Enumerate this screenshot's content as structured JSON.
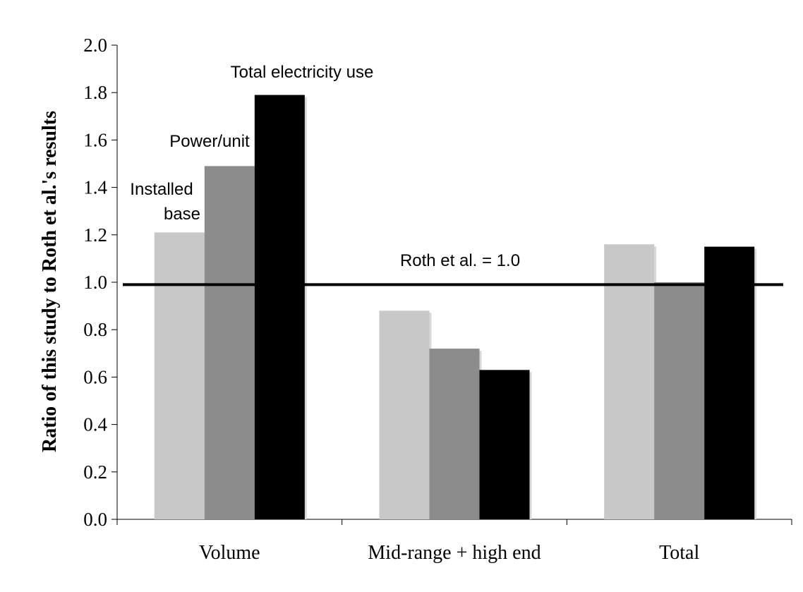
{
  "chart_data": {
    "type": "bar",
    "title": "",
    "xlabel": "",
    "ylabel": "Ratio of this study to Roth et al.'s results",
    "ylim": [
      0,
      2.0
    ],
    "yticks": [
      "0.0",
      "0.2",
      "0.4",
      "0.6",
      "0.8",
      "1.0",
      "1.2",
      "1.4",
      "1.6",
      "1.8",
      "2.0"
    ],
    "categories": [
      "Volume",
      "Mid-range + high end",
      "Total"
    ],
    "series": [
      {
        "name": "Installed base",
        "color": "#c8c8c8",
        "values": [
          1.21,
          0.88,
          1.16
        ]
      },
      {
        "name": "Power/unit",
        "color": "#8c8c8c",
        "values": [
          1.49,
          0.72,
          1.0
        ]
      },
      {
        "name": "Total electricity use",
        "color": "#000000",
        "values": [
          1.79,
          0.63,
          1.15
        ]
      }
    ],
    "reference_line": {
      "value": 0.99,
      "label": "Roth et al. = 1.0"
    },
    "annotations": {
      "installed_base_line1": "Installed",
      "installed_base_line2": "base",
      "power_unit": "Power/unit",
      "total_electricity": "Total electricity use"
    },
    "grid": false,
    "legend": "none"
  }
}
